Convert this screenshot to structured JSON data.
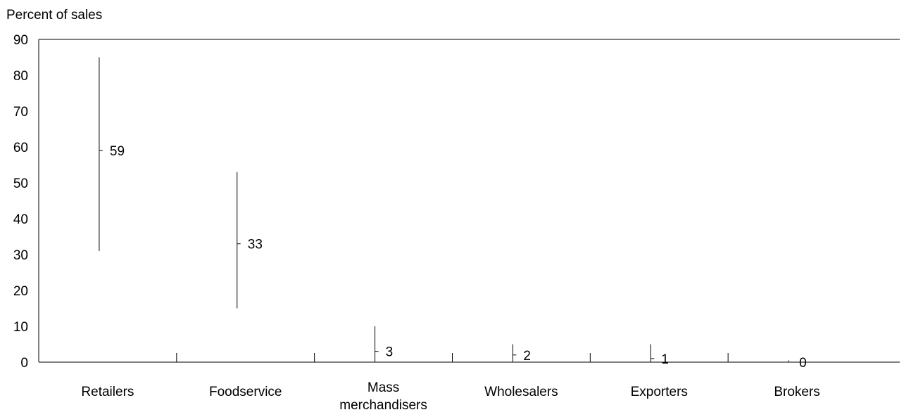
{
  "chart_data": {
    "type": "hi-low-mean",
    "ylabel": "Percent of sales",
    "ylim": [
      0,
      90
    ],
    "yticks": [
      "0",
      "10",
      "20",
      "30",
      "40",
      "50",
      "60",
      "70",
      "80",
      "90"
    ],
    "categories": [
      {
        "lines": [
          "Retailers"
        ]
      },
      {
        "lines": [
          "Foodservice"
        ]
      },
      {
        "lines": [
          "Mass",
          "merchandisers"
        ]
      },
      {
        "lines": [
          "Wholesalers"
        ]
      },
      {
        "lines": [
          "Exporters"
        ]
      },
      {
        "lines": [
          "Brokers"
        ]
      }
    ],
    "series": [
      {
        "low": 31,
        "high": 85,
        "mean": 59,
        "label": "59"
      },
      {
        "low": 15,
        "high": 53,
        "mean": 33,
        "label": "33"
      },
      {
        "low": 0,
        "high": 10,
        "mean": 3,
        "label": "3"
      },
      {
        "low": 0,
        "high": 5,
        "mean": 2,
        "label": "2"
      },
      {
        "low": 0,
        "high": 5,
        "mean": 1,
        "label": "1"
      },
      {
        "low": 0,
        "high": 0.5,
        "mean": 0,
        "label": "0"
      }
    ],
    "grid": false,
    "legend": "none"
  }
}
